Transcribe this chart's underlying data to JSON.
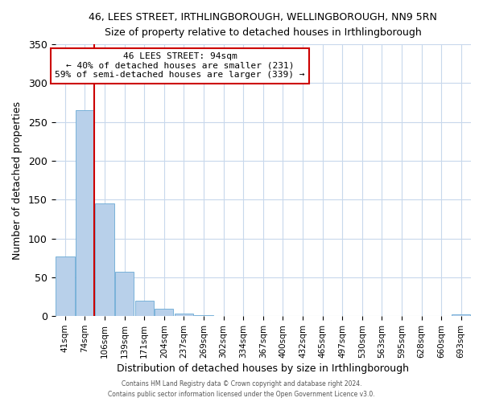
{
  "title": "46, LEES STREET, IRTHLINGBOROUGH, WELLINGBOROUGH, NN9 5RN",
  "subtitle": "Size of property relative to detached houses in Irthlingborough",
  "xlabel": "Distribution of detached houses by size in Irthlingborough",
  "ylabel": "Number of detached properties",
  "bar_labels": [
    "41sqm",
    "74sqm",
    "106sqm",
    "139sqm",
    "171sqm",
    "204sqm",
    "237sqm",
    "269sqm",
    "302sqm",
    "334sqm",
    "367sqm",
    "400sqm",
    "432sqm",
    "465sqm",
    "497sqm",
    "530sqm",
    "563sqm",
    "595sqm",
    "628sqm",
    "660sqm",
    "693sqm"
  ],
  "bar_values": [
    77,
    265,
    145,
    57,
    20,
    10,
    3,
    1,
    0,
    0,
    0,
    0,
    0,
    0,
    0,
    0,
    0,
    0,
    0,
    0,
    2
  ],
  "bar_color": "#b8d0ea",
  "bar_edge_color": "#6aaad4",
  "ylim": [
    0,
    350
  ],
  "yticks": [
    0,
    50,
    100,
    150,
    200,
    250,
    300,
    350
  ],
  "vline_color": "#cc0000",
  "annotation_title": "46 LEES STREET: 94sqm",
  "annotation_line1": "← 40% of detached houses are smaller (231)",
  "annotation_line2": "59% of semi-detached houses are larger (339) →",
  "annotation_box_color": "#cc0000",
  "footer_line1": "Contains HM Land Registry data © Crown copyright and database right 2024.",
  "footer_line2": "Contains public sector information licensed under the Open Government Licence v3.0.",
  "background_color": "#ffffff",
  "grid_color": "#c8d8ec"
}
